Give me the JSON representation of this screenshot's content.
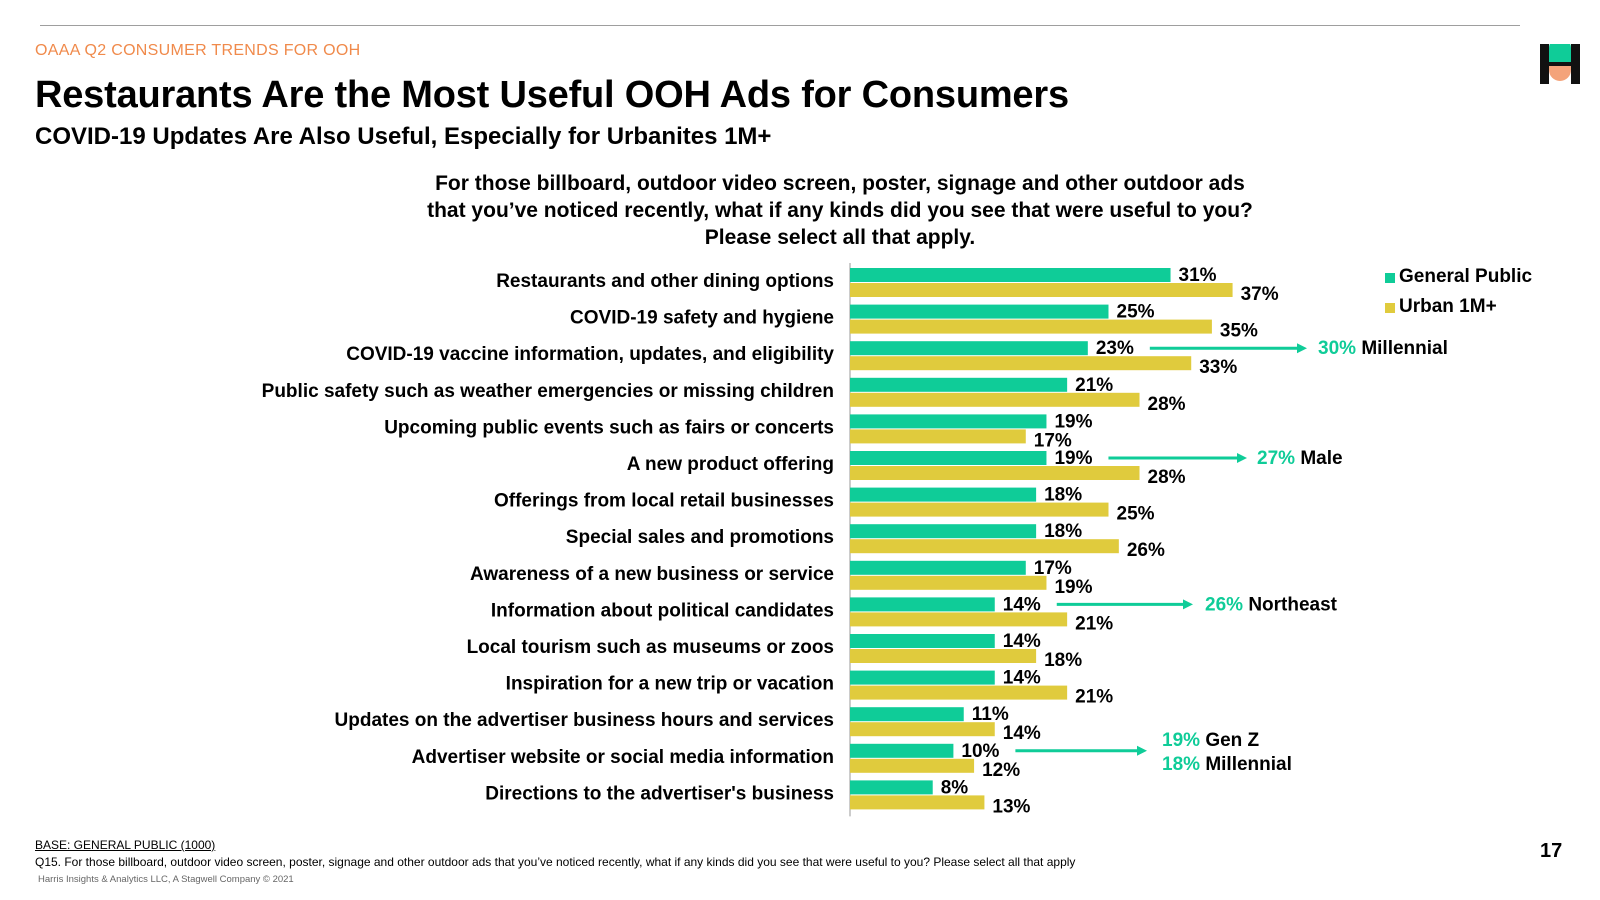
{
  "header": {
    "eyebrow": "OAAA Q2 CONSUMER TRENDS FOR OOH",
    "title": "Restaurants Are the Most Useful OOH Ads for Consumers",
    "subtitle": "COVID-19 Updates Are Also Useful, Especially for Urbanites 1M+"
  },
  "question": [
    "For those billboard, outdoor video screen, poster, signage and other outdoor ads",
    "that you’ve noticed recently, what if any kinds did you see that were useful to you?",
    "Please select all that apply."
  ],
  "colors": {
    "general": "#0fcc98",
    "urban": "#e0cb3d",
    "accent": "#0fcc98",
    "eyebrow": "#f08a4b"
  },
  "chart_data": {
    "type": "bar",
    "orientation": "horizontal",
    "categories": [
      "Restaurants and other dining options",
      "COVID-19 safety and hygiene",
      "COVID-19 vaccine information, updates, and eligibility",
      "Public safety such as weather emergencies or missing children",
      "Upcoming public events such as fairs or concerts",
      "A new product offering",
      "Offerings from local retail businesses",
      "Special sales and promotions",
      "Awareness of a new business or service",
      "Information about political candidates",
      "Local tourism such as museums or zoos",
      "Inspiration for a new trip or vacation",
      "Updates on the advertiser business hours and services",
      "Advertiser website or social media information",
      "Directions to the advertiser's business"
    ],
    "series": [
      {
        "name": "General Public",
        "values": [
          31,
          25,
          23,
          21,
          19,
          19,
          18,
          18,
          17,
          14,
          14,
          14,
          11,
          10,
          8
        ]
      },
      {
        "name": "Urban 1M+",
        "values": [
          37,
          35,
          33,
          28,
          17,
          28,
          25,
          26,
          19,
          21,
          18,
          21,
          14,
          12,
          13
        ]
      }
    ],
    "value_suffix": "%",
    "legend_position": "top-right",
    "callouts": [
      {
        "category_index": 2,
        "lines": [
          {
            "value": "30%",
            "label": "Millennial"
          }
        ]
      },
      {
        "category_index": 5,
        "lines": [
          {
            "value": "27%",
            "label": "Male"
          }
        ]
      },
      {
        "category_index": 9,
        "lines": [
          {
            "value": "26%",
            "label": "Northeast"
          }
        ]
      },
      {
        "category_index": 13,
        "lines": [
          {
            "value": "19%",
            "label": "Gen Z"
          },
          {
            "value": "18%",
            "label": "Millennial"
          }
        ]
      }
    ]
  },
  "footer": {
    "base": "BASE: GENERAL PUBLIC (1000)",
    "question": "Q15. For those billboard, outdoor video screen, poster, signage and other outdoor ads that you’ve noticed recently, what if any kinds did you see that were useful to you?  Please select all that apply",
    "copyright": "Harris Insights & Analytics LLC, A Stagwell Company © 2021",
    "page_number": "17"
  }
}
